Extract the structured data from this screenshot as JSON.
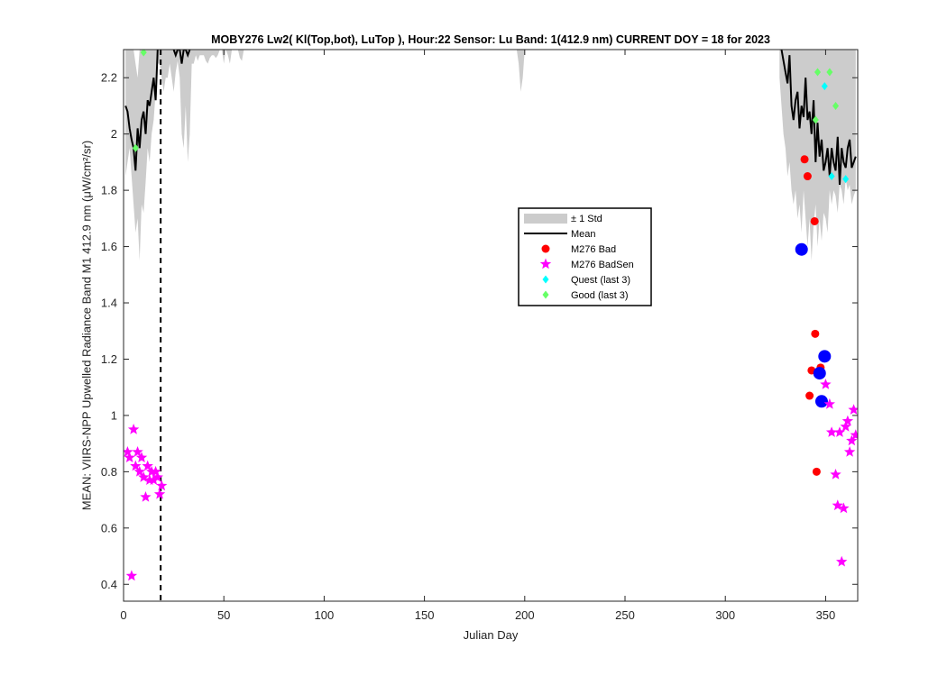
{
  "chart_data": {
    "type": "scatter",
    "title": "MOBY276   Lw2( Kl(Top,bot), LuTop ),   Hour:22 Sensor: Lu Band: 1(412.9 nm)   CURRENT DOY = 18 for 2023",
    "xlabel": "Julian Day",
    "ylabel": "MEAN: VIIRS-NPP Upwelled Radiance Band M1 412.9 nm (μW/cm²/sr)",
    "xlim": [
      0,
      366
    ],
    "ylim": [
      0.34,
      2.3
    ],
    "xticks": [
      0,
      50,
      100,
      150,
      200,
      250,
      300,
      350
    ],
    "yticks": [
      0.4,
      0.6,
      0.8,
      1,
      1.2,
      1.4,
      1.6,
      1.8,
      2,
      2.2
    ],
    "ytick_labels": [
      "0.4",
      "0.6",
      "0.8",
      "1",
      "1.2",
      "1.4",
      "1.6",
      "1.8",
      "2",
      "2.2"
    ],
    "grid": false,
    "legend_position": "center-right",
    "current_doy": 18.5,
    "colors": {
      "std_band": "#cccccc",
      "mean": "#000000",
      "bad": "#ff0000",
      "bad_large": "#0000ff",
      "badsen": "#ff00ff",
      "quest": "#00ffff",
      "good": "#66ff66"
    },
    "series": [
      {
        "name": "± 1 Std",
        "kind": "band",
        "segments": [
          {
            "x": [
              1,
              2,
              3,
              4,
              5,
              6,
              7,
              8,
              9,
              10,
              11,
              12,
              13,
              14,
              15,
              16,
              17,
              18,
              19,
              20,
              21,
              22,
              23,
              24,
              25,
              26,
              27,
              28,
              29,
              30,
              31,
              32,
              33,
              34,
              35,
              36,
              37,
              38,
              39,
              40,
              41,
              42,
              43,
              44,
              45,
              46,
              47,
              48,
              49,
              50,
              51,
              52,
              53,
              54,
              55,
              56,
              57,
              58,
              59,
              60
            ],
            "upper": [
              2.3,
              2.3,
              2.3,
              2.3,
              2.3,
              2.25,
              2.2,
              2.3,
              2.3,
              2.3,
              2.3,
              2.3,
              2.3,
              2.3,
              2.3,
              2.3,
              2.3,
              2.3,
              2.3,
              2.3,
              2.3,
              2.3,
              2.3,
              2.3,
              2.3,
              2.3,
              2.3,
              2.3,
              2.3,
              2.3,
              2.3,
              2.3,
              2.3,
              2.3,
              2.3,
              2.3,
              2.3,
              2.3,
              2.3,
              2.3,
              2.3,
              2.3,
              2.3,
              2.3,
              2.3,
              2.3,
              2.3,
              2.3,
              2.3,
              2.3,
              2.3,
              2.3,
              2.3,
              2.3,
              2.3,
              2.3,
              2.3,
              2.3,
              2.3,
              2.3
            ],
            "lower": [
              1.85,
              1.9,
              1.95,
              1.85,
              1.75,
              1.65,
              1.7,
              1.55,
              1.75,
              1.72,
              1.83,
              1.95,
              1.9,
              2.0,
              2.05,
              2.15,
              2.25,
              2.25,
              2.2,
              2.15,
              2.2,
              2.2,
              2.25,
              2.2,
              2.15,
              2.22,
              2.26,
              2.2,
              2.0,
              1.95,
              2.1,
              1.9,
              2.0,
              2.25,
              2.25,
              2.28,
              2.26,
              2.28,
              2.28,
              2.28,
              2.26,
              2.25,
              2.27,
              2.28,
              2.28,
              2.27,
              2.28,
              2.3,
              2.3,
              2.25,
              2.3,
              2.28,
              2.25,
              2.3,
              2.3,
              2.3,
              2.3,
              2.27,
              2.26,
              2.3
            ]
          },
          {
            "x": [
              196,
              197,
              198,
              199,
              200,
              201
            ],
            "upper": [
              2.3,
              2.3,
              2.3,
              2.3,
              2.3,
              2.3
            ],
            "lower": [
              2.3,
              2.25,
              2.15,
              2.2,
              2.3,
              2.3
            ]
          },
          {
            "x": [
              327,
              328,
              329,
              330,
              331,
              332,
              333,
              334,
              335,
              336,
              337,
              338,
              339,
              340,
              341,
              342,
              343,
              344,
              345,
              346,
              347,
              348,
              349,
              350,
              351,
              352,
              353,
              354,
              355,
              356,
              357,
              358,
              359,
              360,
              361,
              362,
              363,
              364,
              365
            ],
            "upper": [
              2.3,
              2.3,
              2.3,
              2.3,
              2.3,
              2.3,
              2.3,
              2.3,
              2.3,
              2.3,
              2.3,
              2.3,
              2.3,
              2.3,
              2.3,
              2.3,
              2.3,
              2.3,
              2.3,
              2.3,
              2.3,
              2.3,
              2.3,
              2.3,
              2.3,
              2.3,
              2.3,
              2.3,
              2.3,
              2.3,
              2.3,
              2.3,
              2.3,
              2.3,
              2.3,
              2.3,
              2.3,
              2.3,
              2.3
            ],
            "lower": [
              2.2,
              2.1,
              2.0,
              1.95,
              1.85,
              1.9,
              1.8,
              1.75,
              1.8,
              1.7,
              1.75,
              1.65,
              1.8,
              1.7,
              1.6,
              1.7,
              1.55,
              1.68,
              1.75,
              1.6,
              1.7,
              1.62,
              1.72,
              1.7,
              1.65,
              1.8,
              1.75,
              1.8,
              1.78,
              1.72,
              1.82,
              1.8,
              1.75,
              1.84,
              1.8,
              1.82,
              1.75,
              1.78,
              1.8
            ]
          }
        ]
      },
      {
        "name": "Mean",
        "kind": "line",
        "segments": [
          {
            "x": [
              1,
              2,
              3,
              4,
              5,
              6,
              7,
              8,
              9,
              10,
              11,
              12,
              13,
              14,
              15,
              16,
              17
            ],
            "y": [
              2.1,
              2.08,
              2.02,
              1.98,
              1.95,
              1.87,
              2.02,
              1.95,
              2.05,
              2.08,
              2.0,
              2.12,
              2.1,
              2.15,
              2.2,
              2.12,
              2.3
            ]
          },
          {
            "x": [
              25,
              26,
              27,
              28,
              29,
              30,
              31,
              32,
              33
            ],
            "y": [
              2.3,
              2.28,
              2.3,
              2.3,
              2.25,
              2.3,
              2.3,
              2.28,
              2.3
            ]
          },
          {
            "x": [
              328,
              329,
              330,
              331,
              332,
              333,
              334,
              335,
              336,
              337,
              338,
              339,
              340,
              341,
              342,
              343,
              344,
              345,
              346,
              347,
              348,
              349,
              350,
              351,
              352,
              353,
              354,
              355,
              356,
              357,
              358,
              359,
              360,
              361,
              362,
              363,
              364,
              365
            ],
            "y": [
              2.3,
              2.26,
              2.22,
              2.18,
              2.28,
              2.1,
              2.05,
              2.12,
              2.15,
              2.02,
              2.1,
              2.06,
              2.2,
              2.05,
              2.08,
              2.0,
              2.12,
              1.9,
              2.04,
              1.92,
              1.98,
              1.87,
              1.9,
              1.95,
              1.85,
              1.95,
              1.9,
              1.87,
              1.99,
              1.82,
              1.95,
              1.9,
              1.88,
              1.95,
              1.98,
              1.88,
              1.9,
              1.92
            ]
          }
        ]
      },
      {
        "name": "M276 Bad",
        "kind": "circle",
        "x": [
          339.5,
          341,
          342,
          343,
          344.5,
          344.8,
          345.5,
          346,
          347.5
        ],
        "y": [
          1.91,
          1.85,
          1.07,
          1.16,
          1.69,
          1.29,
          0.8,
          1.15,
          1.17
        ],
        "large": {
          "x": [
            338,
            347,
            348,
            349.5
          ],
          "y": [
            1.59,
            1.15,
            1.05,
            1.21
          ]
        }
      },
      {
        "name": "M276 BadSen",
        "kind": "star",
        "x": [
          2,
          3,
          4,
          5,
          6,
          7,
          8,
          9,
          10,
          11,
          12,
          13,
          14,
          15,
          16,
          17,
          18,
          19,
          350,
          352,
          353,
          355,
          356,
          357,
          358,
          359,
          360,
          361,
          362,
          363,
          364,
          365
        ],
        "y": [
          0.87,
          0.85,
          0.43,
          0.95,
          0.82,
          0.87,
          0.8,
          0.85,
          0.78,
          0.71,
          0.82,
          0.77,
          0.8,
          0.77,
          0.8,
          0.78,
          0.72,
          0.75,
          1.11,
          1.04,
          0.94,
          0.79,
          0.68,
          0.94,
          0.48,
          0.67,
          0.96,
          0.98,
          0.87,
          0.91,
          1.02,
          0.93
        ]
      },
      {
        "name": "Quest (last 3)",
        "kind": "diamond",
        "x": [
          349.5,
          353,
          360
        ],
        "y": [
          2.17,
          1.85,
          1.84
        ]
      },
      {
        "name": "Good (last 3)",
        "kind": "diamond",
        "x": [
          6,
          10,
          345,
          346,
          352,
          355
        ],
        "y": [
          1.95,
          2.29,
          2.05,
          2.22,
          2.22,
          2.1
        ]
      }
    ]
  }
}
